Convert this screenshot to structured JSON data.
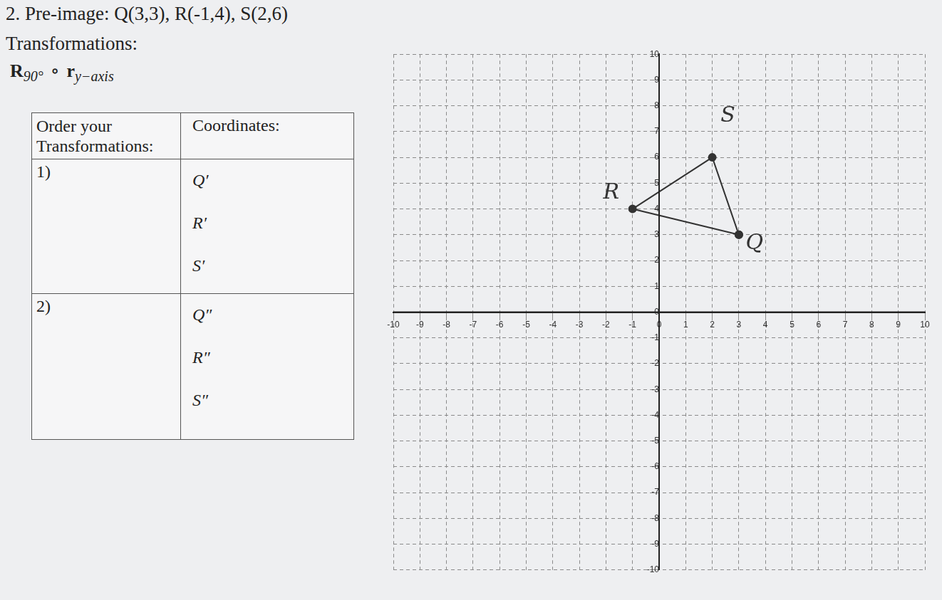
{
  "header": {
    "title": "2. Pre-image: Q(3,3), R(-1,4), S(2,6)",
    "subtitle": "Transformations:"
  },
  "transformation": {
    "rotation": "R",
    "rotation_sub": "90°",
    "compose": "∘",
    "reflection": "r",
    "reflection_sub": "y−axis"
  },
  "table": {
    "header": [
      "Order your Transformations:",
      "Coordinates:"
    ],
    "rows": [
      [
        "1)",
        [
          "Q′",
          "R′",
          "S′"
        ]
      ],
      [
        "2)",
        [
          "Q″",
          "R″",
          "S″"
        ]
      ]
    ]
  },
  "chart_data": {
    "type": "scatter",
    "xlim": [
      -10,
      10
    ],
    "ylim": [
      -10,
      10
    ],
    "xticks": [
      -10,
      -9,
      -8,
      -7,
      -6,
      -5,
      -4,
      -3,
      -2,
      -1,
      0,
      1,
      2,
      3,
      4,
      5,
      6,
      7,
      8,
      9,
      10
    ],
    "yticks": [
      -10,
      -9,
      -8,
      -7,
      -6,
      -5,
      -4,
      -3,
      -2,
      -1,
      0,
      1,
      2,
      3,
      4,
      5,
      6,
      7,
      8,
      9,
      10
    ],
    "grid": true,
    "points": {
      "labels": [
        "Q",
        "R",
        "S"
      ],
      "x": [
        3,
        -1,
        2
      ],
      "y": [
        3,
        4,
        6
      ]
    },
    "color": "#333333",
    "marker": "circle",
    "line_style": "solid"
  }
}
